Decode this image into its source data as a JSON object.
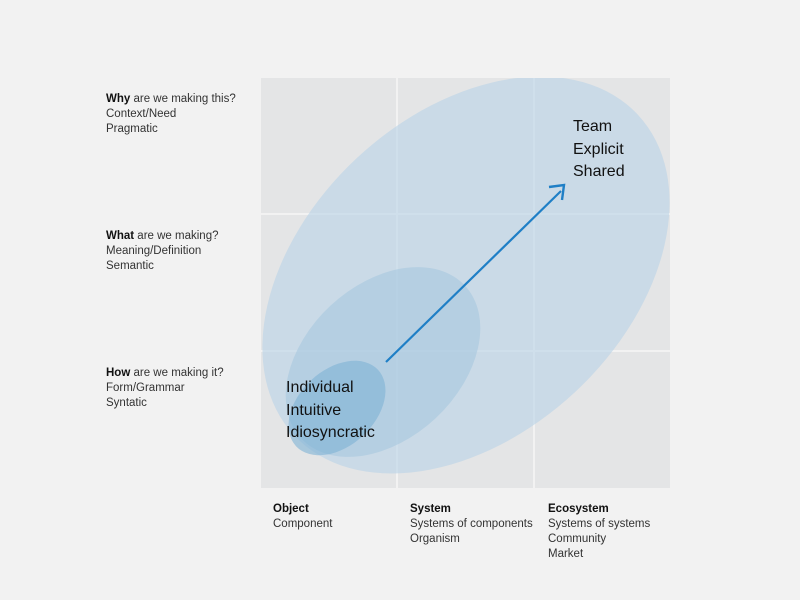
{
  "rows": [
    {
      "bold": "Why",
      "question": " are we making this?",
      "line2": "Context/Need",
      "line3": "Pragmatic"
    },
    {
      "bold": "What",
      "question": " are we making?",
      "line2": "Meaning/Definition",
      "line3": "Semantic"
    },
    {
      "bold": "How",
      "question": " are we making it?",
      "line2": "Form/Grammar",
      "line3": "Syntatic"
    }
  ],
  "columns": [
    {
      "bold": "Object",
      "lines": [
        "Component"
      ]
    },
    {
      "bold": "System",
      "lines": [
        "Systems of components",
        "Organism"
      ]
    },
    {
      "bold": "Ecosystem",
      "lines": [
        "Systems of systems",
        "Community",
        "Market"
      ]
    }
  ],
  "start_label": [
    "Individual",
    "Intuitive",
    "Idiosyncratic"
  ],
  "end_label": [
    "Team",
    "Explicit",
    "Shared"
  ],
  "colors": {
    "background": "#f2f2f2",
    "grid_cell": "#e4e5e6",
    "ellipse_outer": "#c3d8e5",
    "ellipse_middle": "#b0cde0",
    "ellipse_inner": "#8dbad9",
    "arrow": "#1f7fc6"
  }
}
